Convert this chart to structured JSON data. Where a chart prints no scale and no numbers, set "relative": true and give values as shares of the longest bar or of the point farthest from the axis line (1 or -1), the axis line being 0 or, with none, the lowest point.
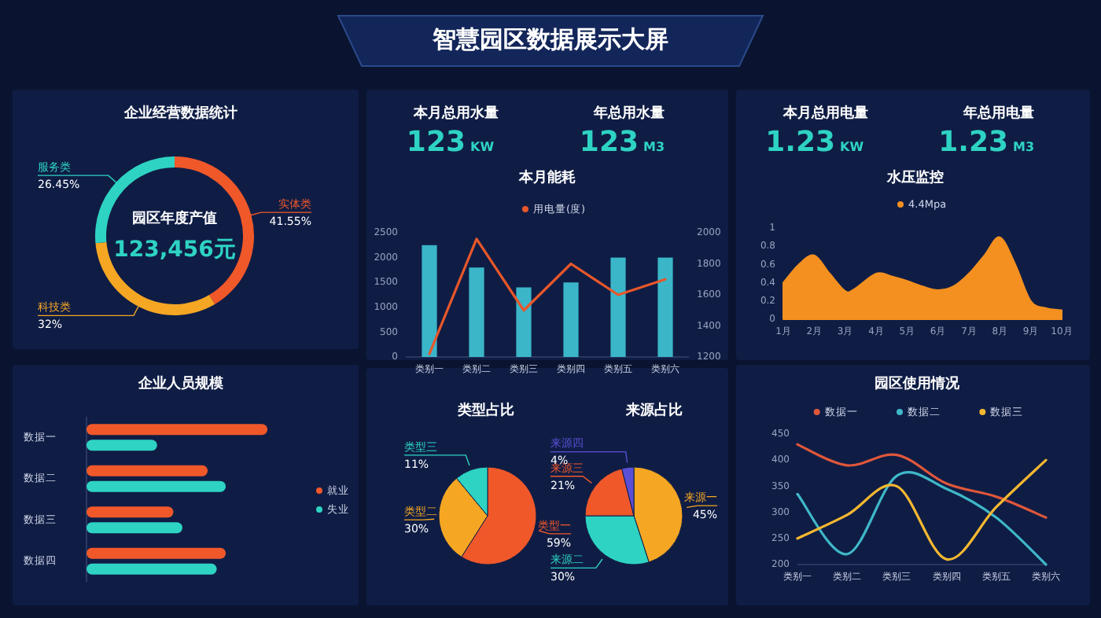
{
  "chart_data": [
    {
      "type": "other",
      "title": "智慧园区数据展示大屏"
    },
    {
      "type": "donut",
      "title": "企业经营数据统计",
      "categories": [
        "实体类",
        "科技类",
        "服务类"
      ],
      "values": [
        41.55,
        32,
        26.45
      ],
      "colors": [
        "#f0582a",
        "#f5a623",
        "#2ed3c3"
      ],
      "value_labels": [
        "41.55%",
        "32%",
        "26.45%"
      ],
      "annotations": [
        "园区年度产值",
        "123,456元"
      ]
    },
    {
      "type": "other",
      "annotations": [
        "本月总用水量",
        "123",
        "KW",
        "年总用水量",
        "123",
        "M3"
      ]
    },
    {
      "type": "other",
      "annotations": [
        "本月总用电量",
        "1.23",
        "KW",
        "年总用电量",
        "1.23",
        "M3"
      ]
    },
    {
      "type": "bar",
      "title": "本月能耗",
      "categories": [
        "类别一",
        "类别二",
        "类别三",
        "类别四",
        "类别五",
        "类别六"
      ],
      "series": [
        {
          "color": "#3bb6c9",
          "values": [
            2250,
            1800,
            1400,
            1500,
            2000,
            2000
          ]
        },
        {
          "type": "line",
          "axis": "y2",
          "name": "用电量(度)",
          "color": "#e8572a",
          "values": [
            1220,
            1960,
            1500,
            1800,
            1600,
            1700
          ]
        }
      ],
      "ylim": [
        0,
        2500
      ],
      "yticks": [
        0,
        500,
        1000,
        1500,
        2000,
        2500
      ],
      "y2lim": [
        1200,
        2000
      ],
      "y2ticks": [
        1200,
        1400,
        1600,
        1800,
        2000
      ],
      "legend": "top"
    },
    {
      "type": "area",
      "title": "水压监控",
      "x": [
        1,
        1.5,
        2,
        2.5,
        3,
        3.3,
        4,
        4.5,
        5,
        5.5,
        6,
        6.5,
        7,
        7.5,
        8,
        8.5,
        9,
        9.5,
        10
      ],
      "series": [
        {
          "name": "4.4Mpa",
          "color": "#f39020",
          "values": [
            0.4,
            0.6,
            0.7,
            0.5,
            0.31,
            0.33,
            0.5,
            0.47,
            0.42,
            0.36,
            0.32,
            0.36,
            0.5,
            0.7,
            0.9,
            0.6,
            0.2,
            0.12,
            0.1
          ]
        }
      ],
      "xlim": [
        1,
        10
      ],
      "xticks": [
        {
          "value": 1,
          "label": "1月"
        },
        {
          "value": 2,
          "label": "2月"
        },
        {
          "value": 3,
          "label": "3月"
        },
        {
          "value": 4,
          "label": "4月"
        },
        {
          "value": 5,
          "label": "5月"
        },
        {
          "value": 6,
          "label": "6月"
        },
        {
          "value": 7,
          "label": "7月"
        },
        {
          "value": 8,
          "label": "8月"
        },
        {
          "value": 9,
          "label": "9月"
        },
        {
          "value": 10,
          "label": "10月"
        }
      ],
      "ylim": [
        0,
        1
      ],
      "yticks": [
        0,
        0.2,
        0.4,
        0.6,
        0.8,
        1
      ],
      "legend": "top"
    },
    {
      "type": "bar",
      "orientation": "horizontal",
      "relative": true,
      "title": "企业人员规模",
      "categories": [
        "数据一",
        "数据二",
        "数据三",
        "数据四"
      ],
      "series": [
        {
          "name": "就业",
          "color": "#f0582a",
          "values": [
            1,
            0.67,
            0.48,
            0.77
          ]
        },
        {
          "name": "失业",
          "color": "#2ed3c3",
          "values": [
            0.39,
            0.77,
            0.53,
            0.72
          ]
        }
      ],
      "legend": "right"
    },
    {
      "type": "pie",
      "title": "类型占比",
      "categories": [
        "类型一",
        "类型二",
        "类型三"
      ],
      "values": [
        59,
        30,
        11
      ],
      "colors": [
        "#f0582a",
        "#f5a623",
        "#2ed3c3"
      ],
      "value_labels": [
        "59%",
        "30%",
        "11%"
      ]
    },
    {
      "type": "pie",
      "title": "来源占比",
      "categories": [
        "来源一",
        "来源二",
        "来源三",
        "来源四"
      ],
      "values": [
        45,
        30,
        21,
        4
      ],
      "colors": [
        "#f5a623",
        "#2ed3c3",
        "#f0582a",
        "#5b4fd6"
      ],
      "value_labels": [
        "45%",
        "30%",
        "21%",
        "4%"
      ]
    },
    {
      "type": "line",
      "title": "园区使用情况",
      "categories": [
        "类别一",
        "类别二",
        "类别三",
        "类别四",
        "类别五",
        "类别六"
      ],
      "series": [
        {
          "name": "数据一",
          "color": "#e0573a",
          "values": [
            430,
            390,
            410,
            355,
            330,
            290
          ]
        },
        {
          "name": "数据二",
          "color": "#3fb8c8",
          "values": [
            335,
            220,
            370,
            345,
            290,
            200
          ]
        },
        {
          "name": "数据三",
          "color": "#f5b830",
          "values": [
            250,
            295,
            350,
            210,
            310,
            400
          ]
        }
      ],
      "ylim": [
        200,
        450
      ],
      "yticks": [
        200,
        250,
        300,
        350,
        400,
        450
      ],
      "legend": "top"
    }
  ]
}
